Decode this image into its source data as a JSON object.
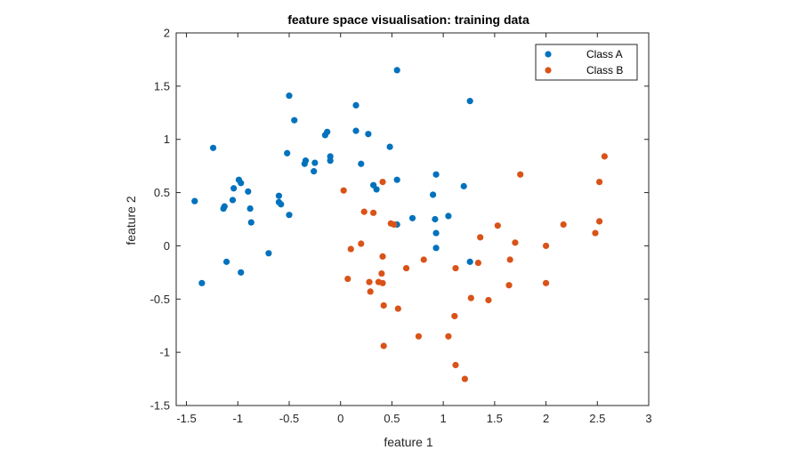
{
  "chart_data": {
    "type": "scatter",
    "title": "feature space visualisation: training data",
    "xlabel": "feature 1",
    "ylabel": "feature 2",
    "xlim": [
      -1.6,
      3
    ],
    "ylim": [
      -1.5,
      2
    ],
    "xticks": [
      -1.5,
      -1,
      -0.5,
      0,
      0.5,
      1,
      1.5,
      2,
      2.5,
      3
    ],
    "xtick_labels": [
      "-1.5",
      "-1",
      "-0.5",
      "0",
      "0.5",
      "1",
      "1.5",
      "2",
      "2.5",
      "3"
    ],
    "yticks": [
      -1.5,
      -1,
      -0.5,
      0,
      0.5,
      1,
      1.5,
      2
    ],
    "ytick_labels": [
      "-1.5",
      "-1",
      "-0.5",
      "0",
      "0.5",
      "1",
      "1.5",
      "2"
    ],
    "grid": false,
    "legend_position": "top-right",
    "series": [
      {
        "name": "Class A",
        "color": "#0072BD",
        "points": [
          [
            0.55,
            1.65
          ],
          [
            -0.5,
            1.41
          ],
          [
            0.15,
            1.32
          ],
          [
            1.26,
            1.36
          ],
          [
            -0.45,
            1.18
          ],
          [
            -0.13,
            1.07
          ],
          [
            -0.15,
            1.04
          ],
          [
            0.15,
            1.08
          ],
          [
            0.27,
            1.05
          ],
          [
            -1.24,
            0.92
          ],
          [
            0.48,
            0.93
          ],
          [
            -0.52,
            0.87
          ],
          [
            -0.1,
            0.84
          ],
          [
            -0.1,
            0.8
          ],
          [
            -0.34,
            0.8
          ],
          [
            -0.35,
            0.77
          ],
          [
            -0.25,
            0.78
          ],
          [
            0.2,
            0.77
          ],
          [
            -0.26,
            0.7
          ],
          [
            0.55,
            0.62
          ],
          [
            0.93,
            0.67
          ],
          [
            -0.99,
            0.62
          ],
          [
            -0.97,
            0.59
          ],
          [
            0.32,
            0.57
          ],
          [
            0.35,
            0.53
          ],
          [
            1.2,
            0.56
          ],
          [
            -1.04,
            0.54
          ],
          [
            -0.9,
            0.51
          ],
          [
            -0.6,
            0.47
          ],
          [
            0.9,
            0.48
          ],
          [
            -1.42,
            0.42
          ],
          [
            -1.05,
            0.43
          ],
          [
            -0.6,
            0.41
          ],
          [
            -0.58,
            0.39
          ],
          [
            -1.13,
            0.37
          ],
          [
            -1.14,
            0.35
          ],
          [
            -0.88,
            0.35
          ],
          [
            -0.5,
            0.29
          ],
          [
            0.7,
            0.26
          ],
          [
            1.05,
            0.28
          ],
          [
            0.92,
            0.25
          ],
          [
            -0.87,
            0.22
          ],
          [
            0.55,
            0.2
          ],
          [
            0.93,
            0.12
          ],
          [
            0.93,
            -0.02
          ],
          [
            -0.7,
            -0.07
          ],
          [
            -1.11,
            -0.15
          ],
          [
            1.26,
            -0.15
          ],
          [
            -0.97,
            -0.25
          ],
          [
            -1.35,
            -0.35
          ]
        ]
      },
      {
        "name": "Class B",
        "color": "#D95319",
        "points": [
          [
            2.57,
            0.84
          ],
          [
            1.75,
            0.67
          ],
          [
            2.52,
            0.6
          ],
          [
            0.41,
            0.6
          ],
          [
            0.03,
            0.52
          ],
          [
            0.23,
            0.32
          ],
          [
            0.32,
            0.31
          ],
          [
            0.49,
            0.21
          ],
          [
            0.52,
            0.2
          ],
          [
            1.53,
            0.19
          ],
          [
            2.17,
            0.2
          ],
          [
            2.52,
            0.23
          ],
          [
            2.48,
            0.12
          ],
          [
            1.36,
            0.08
          ],
          [
            1.7,
            0.03
          ],
          [
            2.0,
            0.0
          ],
          [
            0.2,
            0.02
          ],
          [
            0.1,
            -0.03
          ],
          [
            0.41,
            -0.1
          ],
          [
            0.81,
            -0.13
          ],
          [
            1.65,
            -0.13
          ],
          [
            1.34,
            -0.16
          ],
          [
            0.64,
            -0.21
          ],
          [
            1.12,
            -0.21
          ],
          [
            0.4,
            -0.26
          ],
          [
            0.07,
            -0.31
          ],
          [
            0.28,
            -0.34
          ],
          [
            0.37,
            -0.34
          ],
          [
            0.41,
            -0.35
          ],
          [
            1.64,
            -0.37
          ],
          [
            2.0,
            -0.35
          ],
          [
            0.29,
            -0.43
          ],
          [
            1.27,
            -0.49
          ],
          [
            1.44,
            -0.51
          ],
          [
            0.42,
            -0.56
          ],
          [
            0.56,
            -0.59
          ],
          [
            1.11,
            -0.66
          ],
          [
            0.76,
            -0.85
          ],
          [
            1.05,
            -0.85
          ],
          [
            0.42,
            -0.94
          ],
          [
            1.12,
            -1.12
          ],
          [
            1.21,
            -1.25
          ]
        ]
      }
    ]
  }
}
